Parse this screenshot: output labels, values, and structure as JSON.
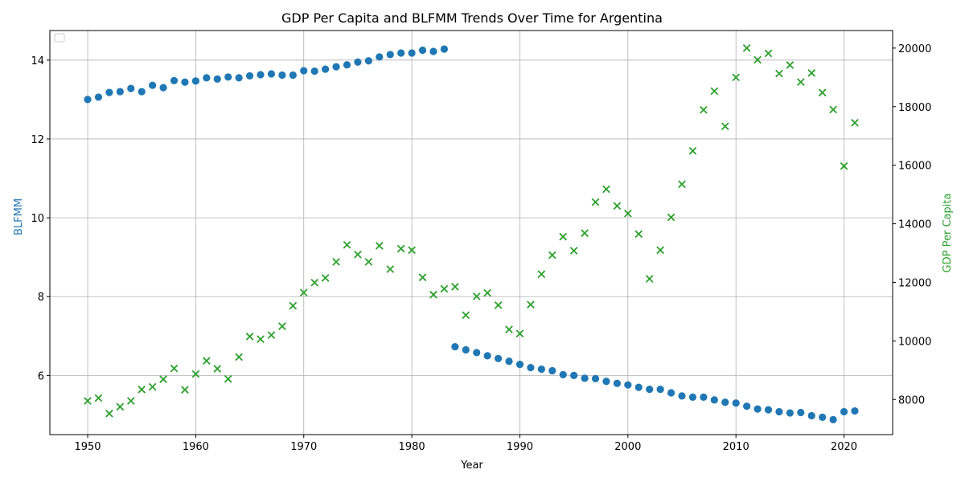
{
  "chart_data": {
    "type": "scatter",
    "title": "GDP Per Capita and BLFMM Trends Over Time for Argentina",
    "xlabel": "Year",
    "ylabel_left": "BLFMM",
    "ylabel_right": "GDP Per Capita",
    "xlim": [
      1946.5,
      2024.5
    ],
    "ylim_left": [
      4.5,
      14.75
    ],
    "ylim_right": [
      6800,
      20600
    ],
    "x_ticks": [
      1950,
      1960,
      1970,
      1980,
      1990,
      2000,
      2010,
      2020
    ],
    "y_ticks_left": [
      6,
      8,
      10,
      12,
      14
    ],
    "y_ticks_right": [
      8000,
      10000,
      12000,
      14000,
      16000,
      18000,
      20000
    ],
    "grid": true,
    "legend": "top-left (empty)",
    "colors": {
      "blfmm": "#1f77b4",
      "gdp": "#2ca02c"
    },
    "series": [
      {
        "axis": "left",
        "marker": "circle",
        "x": [
          1950,
          1951,
          1952,
          1953,
          1954,
          1955,
          1956,
          1957,
          1958,
          1959,
          1960,
          1961,
          1962,
          1963,
          1964,
          1965,
          1966,
          1967,
          1968,
          1969,
          1970,
          1971,
          1972,
          1973,
          1974,
          1975,
          1976,
          1977,
          1978,
          1979,
          1980,
          1981,
          1982,
          1983,
          1984,
          1985,
          1986,
          1987,
          1988,
          1989,
          1990,
          1991,
          1992,
          1993,
          1994,
          1995,
          1996,
          1997,
          1998,
          1999,
          2000,
          2001,
          2002,
          2003,
          2004,
          2005,
          2006,
          2007,
          2008,
          2009,
          2010,
          2011,
          2012,
          2013,
          2014,
          2015,
          2016,
          2017,
          2018,
          2019,
          2020,
          2021
        ],
        "values": [
          13.0,
          13.06,
          13.18,
          13.2,
          13.28,
          13.2,
          13.36,
          13.3,
          13.48,
          13.44,
          13.47,
          13.55,
          13.52,
          13.57,
          13.55,
          13.6,
          13.63,
          13.65,
          13.62,
          13.62,
          13.73,
          13.72,
          13.77,
          13.83,
          13.88,
          13.95,
          13.98,
          14.08,
          14.14,
          14.18,
          14.18,
          14.25,
          14.22,
          14.28,
          6.73,
          6.65,
          6.58,
          6.5,
          6.43,
          6.36,
          6.28,
          6.2,
          6.16,
          6.12,
          6.02,
          6.0,
          5.93,
          5.92,
          5.85,
          5.8,
          5.76,
          5.7,
          5.65,
          5.65,
          5.56,
          5.48,
          5.45,
          5.45,
          5.38,
          5.32,
          5.3,
          5.22,
          5.15,
          5.13,
          5.08,
          5.05,
          5.06,
          4.98,
          4.94,
          4.88,
          5.08,
          5.1
        ]
      },
      {
        "axis": "right",
        "marker": "x",
        "x": [
          1950,
          1951,
          1952,
          1953,
          1954,
          1955,
          1956,
          1957,
          1958,
          1959,
          1960,
          1961,
          1962,
          1963,
          1964,
          1965,
          1966,
          1967,
          1968,
          1969,
          1970,
          1971,
          1972,
          1973,
          1974,
          1975,
          1976,
          1977,
          1978,
          1979,
          1980,
          1981,
          1982,
          1983,
          1984,
          1985,
          1986,
          1987,
          1988,
          1989,
          1990,
          1991,
          1992,
          1993,
          1994,
          1995,
          1996,
          1997,
          1998,
          1999,
          2000,
          2001,
          2002,
          2003,
          2004,
          2005,
          2006,
          2007,
          2008,
          2009,
          2010,
          2011,
          2012,
          2013,
          2014,
          2015,
          2016,
          2017,
          2018,
          2019,
          2020,
          2021
        ],
        "values": [
          7950,
          8050,
          7520,
          7750,
          7950,
          8340,
          8430,
          8690,
          9060,
          8330,
          8870,
          9320,
          9050,
          8700,
          9450,
          10150,
          10060,
          10200,
          10500,
          11200,
          11650,
          11990,
          12150,
          12700,
          13280,
          12950,
          12700,
          13250,
          12450,
          13150,
          13100,
          12170,
          11580,
          11780,
          11850,
          10880,
          11520,
          11640,
          11220,
          10390,
          10250,
          11240,
          12280,
          12930,
          13560,
          13080,
          13680,
          14740,
          15180,
          14610,
          14350,
          13650,
          12120,
          13100,
          14220,
          15350,
          16490,
          17890,
          18530,
          17330,
          19000,
          20000,
          19600,
          19820,
          19130,
          19420,
          18840,
          19150,
          18480,
          17900,
          15970,
          17450
        ]
      }
    ]
  }
}
